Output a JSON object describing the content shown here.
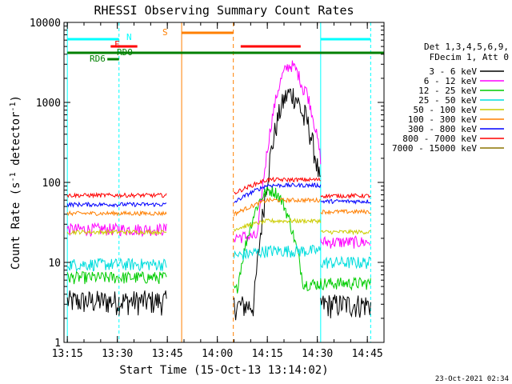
{
  "chart_data": {
    "type": "line",
    "title": "RHESSI Observing Summary Count Rates",
    "xlabel": "Start Time (15-Oct-13 13:14:02)",
    "ylabel_main": "Count Rate (s",
    "ylabel_sup1": "-1",
    "ylabel_mid": " detector",
    "ylabel_sup2": "-1",
    "ylabel_end": ")",
    "xlim_minutes": [
      0,
      96
    ],
    "ylim": [
      1,
      10000
    ],
    "yscale": "log",
    "x_ticks": [
      {
        "m": 1,
        "label": "13:15"
      },
      {
        "m": 16,
        "label": "13:30"
      },
      {
        "m": 31,
        "label": "13:45"
      },
      {
        "m": 46,
        "label": "14:00"
      },
      {
        "m": 61,
        "label": "14:15"
      },
      {
        "m": 76,
        "label": "14:30"
      },
      {
        "m": 91,
        "label": "14:45"
      }
    ],
    "y_ticks": [
      {
        "v": 1,
        "label": "1"
      },
      {
        "v": 10,
        "label": "10"
      },
      {
        "v": 100,
        "label": "100"
      },
      {
        "v": 1000,
        "label": "1000"
      },
      {
        "v": 10000,
        "label": "10000"
      }
    ],
    "legend_header": [
      "Det 1,3,4,5,6,9,",
      "FDecim 1, Att 0"
    ],
    "series": [
      {
        "name": "3 - 6 keV",
        "color": "#000000",
        "base": [
          3.3,
          3.3,
          2.9,
          2.9,
          3.0
        ],
        "peak": 1300
      },
      {
        "name": "6 - 12 keV",
        "color": "#ff00ff",
        "base": [
          26,
          26,
          21,
          21,
          18
        ],
        "peak": 2900
      },
      {
        "name": "12 - 25 keV",
        "color": "#00cc00",
        "base": [
          6.5,
          6.5,
          7.5,
          9.0,
          5.5
        ],
        "peak": 80
      },
      {
        "name": "25 - 50 keV",
        "color": "#00dddd",
        "base": [
          9.5,
          9.5,
          12,
          14,
          10
        ],
        "peak": 16
      },
      {
        "name": "50 - 100 keV",
        "color": "#cccc00",
        "base": [
          24,
          24,
          26,
          33,
          24
        ],
        "peak": 33
      },
      {
        "name": "100 - 300 keV",
        "color": "#ff7f00",
        "base": [
          41,
          41,
          40,
          60,
          43
        ],
        "peak": 62
      },
      {
        "name": "300 - 800 keV",
        "color": "#0000ff",
        "base": [
          53,
          53,
          56,
          92,
          58
        ],
        "peak": 92
      },
      {
        "name": "800 - 7000 keV",
        "color": "#ff0000",
        "base": [
          69,
          69,
          73,
          108,
          68
        ],
        "peak": 108
      },
      {
        "name": "7000 - 15000 keV",
        "color": "#8b7500",
        "base": [
          0,
          0,
          0,
          0,
          0
        ],
        "peak": 0
      }
    ],
    "markers": {
      "N": {
        "label": "N",
        "color": "#00ffff"
      },
      "F": {
        "label": "F",
        "color": "#ff0000"
      },
      "S": {
        "label": "S",
        "color": "#ff7f00"
      },
      "RDO": {
        "label": "RDO",
        "color": "#008000"
      },
      "RD6": {
        "label": "RD6",
        "color": "#008000"
      }
    },
    "timestamp": "23-Oct-2021 02:34"
  }
}
